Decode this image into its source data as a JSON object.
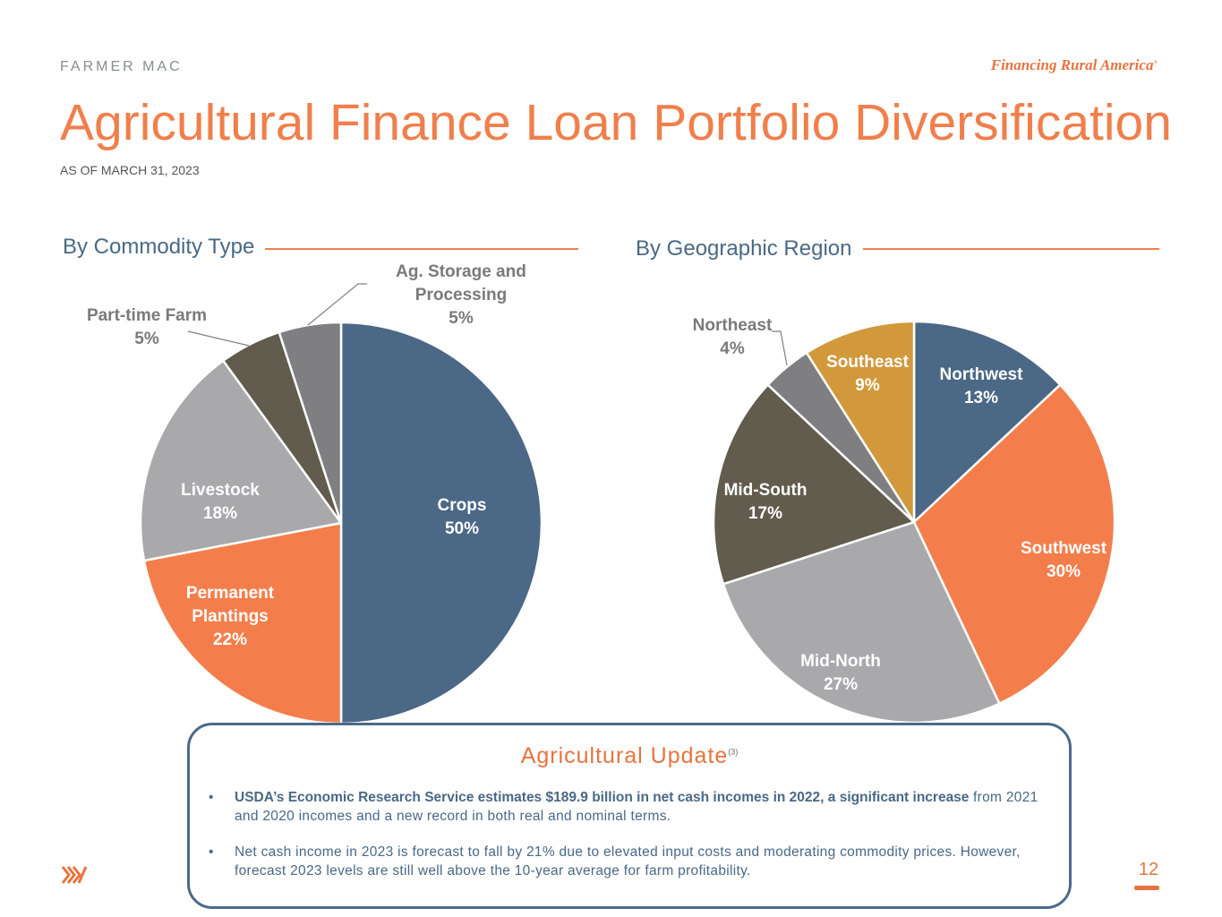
{
  "header": {
    "brand": "FARMER MAC",
    "tagline": "Financing Rural America",
    "tagline_mark": "®",
    "title": "Agricultural Finance Loan Portfolio Diversification",
    "subtitle": "AS OF MARCH 31, 2023"
  },
  "sections": {
    "commodity_title": "By Commodity Type",
    "region_title": "By Geographic Region"
  },
  "chart_data": [
    {
      "type": "pie",
      "title": "By Commodity Type",
      "slices": [
        {
          "name": "Crops",
          "label": [
            "Crops"
          ],
          "value": 50,
          "pct": "50%",
          "color": "#4c6887",
          "text_color": "#ffffff"
        },
        {
          "name": "Permanent Plantings",
          "label": [
            "Permanent",
            "Plantings"
          ],
          "value": 22,
          "pct": "22%",
          "color": "#f47e4b",
          "text_color": "#ffffff"
        },
        {
          "name": "Livestock",
          "label": [
            "Livestock"
          ],
          "value": 18,
          "pct": "18%",
          "color": "#a9a9ab",
          "text_color": "#ffffff"
        },
        {
          "name": "Part-time Farm",
          "label": [
            "Part-time Farm"
          ],
          "value": 5,
          "pct": "5%",
          "color": "#625c4e",
          "text_color": "#7a7a7a"
        },
        {
          "name": "Ag. Storage and Processing",
          "label": [
            "Ag. Storage and",
            "Processing"
          ],
          "value": 5,
          "pct": "5%",
          "color": "#7f7f82",
          "text_color": "#7a7a7a"
        }
      ]
    },
    {
      "type": "pie",
      "title": "By Geographic Region",
      "slices": [
        {
          "name": "Northwest",
          "label": [
            "Northwest"
          ],
          "value": 13,
          "pct": "13%",
          "color": "#4c6887",
          "text_color": "#ffffff"
        },
        {
          "name": "Southwest",
          "label": [
            "Southwest"
          ],
          "value": 30,
          "pct": "30%",
          "color": "#f47e4b",
          "text_color": "#ffffff"
        },
        {
          "name": "Mid-North",
          "label": [
            "Mid-North"
          ],
          "value": 27,
          "pct": "27%",
          "color": "#a9a9ab",
          "text_color": "#ffffff"
        },
        {
          "name": "Mid-South",
          "label": [
            "Mid-South"
          ],
          "value": 17,
          "pct": "17%",
          "color": "#625c4e",
          "text_color": "#ffffff"
        },
        {
          "name": "Northeast",
          "label": [
            "Northeast"
          ],
          "value": 4,
          "pct": "4%",
          "color": "#7f7f82",
          "text_color": "#7a7a7a"
        },
        {
          "name": "Southeast",
          "label": [
            "Southeast"
          ],
          "value": 9,
          "pct": "9%",
          "color": "#d1993c",
          "text_color": "#ffffff"
        }
      ]
    }
  ],
  "update": {
    "title": "Agricultural Update",
    "footnote": "(3)",
    "bullet1_bold": "USDA’s Economic Research Service estimates $189.9 billion in net cash incomes in 2022, a significant increase",
    "bullet1_rest": "from 2021 and 2020 incomes and a new record in both real and nominal terms.",
    "bullet2": "Net cash income in 2023 is forecast to fall by 21% due to elevated input costs and moderating commodity prices. However, forecast 2023 levels are still well above the 10-year average for farm profitability."
  },
  "footer": {
    "page_number": "12",
    "logo_icon": "farmer-mac-logo-icon"
  }
}
